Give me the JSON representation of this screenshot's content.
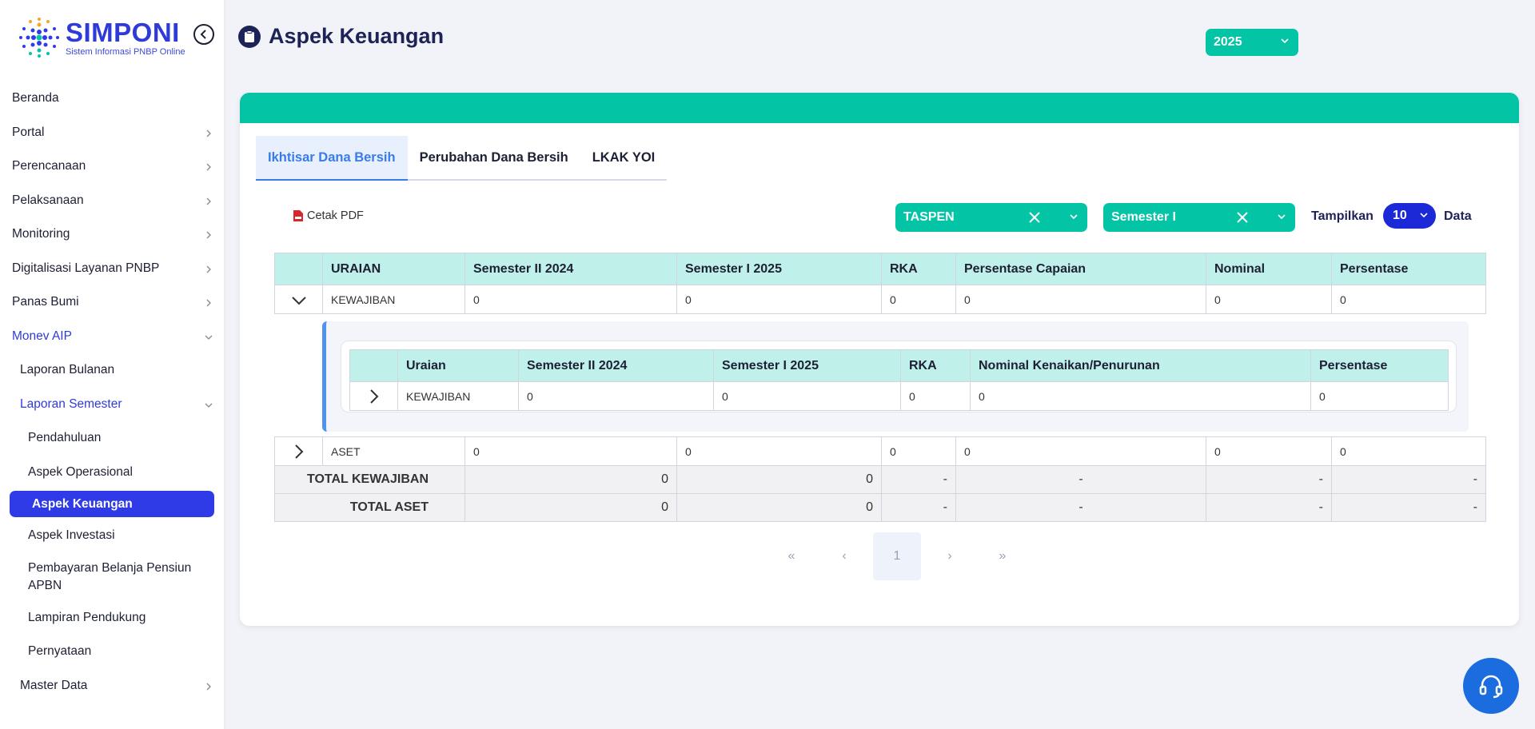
{
  "app": {
    "logo_title": "SIMPONI",
    "logo_subtitle": "Sistem Informasi PNBP Online"
  },
  "sidebar": {
    "items": [
      {
        "label": "Beranda"
      },
      {
        "label": "Portal"
      },
      {
        "label": "Perencanaan"
      },
      {
        "label": "Pelaksanaan"
      },
      {
        "label": "Monitoring"
      },
      {
        "label": "Digitalisasi Layanan PNBP"
      },
      {
        "label": "Panas Bumi"
      },
      {
        "label": "Monev AIP"
      },
      {
        "label": "Laporan Bulanan"
      },
      {
        "label": "Laporan Semester"
      },
      {
        "label": "Pendahuluan"
      },
      {
        "label": "Aspek Operasional"
      },
      {
        "label": "Aspek Keuangan"
      },
      {
        "label": "Aspek Investasi"
      },
      {
        "label": "Pembayaran Belanja Pensiun APBN"
      },
      {
        "label": "Lampiran Pendukung"
      },
      {
        "label": "Pernyataan"
      },
      {
        "label": "Master Data"
      }
    ]
  },
  "header": {
    "title": "Aspek Keuangan",
    "year": "2025"
  },
  "tabs": [
    {
      "label": "Ikhtisar Dana Bersih"
    },
    {
      "label": "Perubahan Dana Bersih"
    },
    {
      "label": "LKAK YOI"
    }
  ],
  "toolbar": {
    "pdf_label": "Cetak PDF",
    "filter_entity": "TASPEN",
    "filter_period": "Semester I",
    "show_label": "Tampilkan",
    "show_value": "10",
    "data_label": "Data"
  },
  "main_table": {
    "headers": [
      "URAIAN",
      "Semester II 2024",
      "Semester I 2025",
      "RKA",
      "Persentase Capaian",
      "Nominal",
      "Persentase"
    ],
    "rows": [
      [
        "KEWAJIBAN",
        "0",
        "0",
        "0",
        "0",
        "0",
        "0"
      ],
      [
        "ASET",
        "0",
        "0",
        "0",
        "0",
        "0",
        "0"
      ]
    ],
    "totals": [
      [
        "TOTAL KEWAJIBAN",
        "0",
        "0",
        "-",
        "-",
        "-",
        "-"
      ],
      [
        "TOTAL ASET",
        "0",
        "0",
        "-",
        "-",
        "-",
        "-"
      ]
    ]
  },
  "sub_table": {
    "headers": [
      "Uraian",
      "Semester II 2024",
      "Semester I 2025",
      "RKA",
      "Nominal Kenaikan/Penurunan",
      "Persentase"
    ],
    "rows": [
      [
        "KEWAJIBAN",
        "0",
        "0",
        "0",
        "0",
        "0"
      ]
    ]
  },
  "pagination": {
    "first": "«",
    "prev": "‹",
    "current": "1",
    "next": "›",
    "last": "»"
  },
  "colors": {
    "teal": "#04c4a6",
    "primary": "#2f3be6",
    "tab_active": "#3a7bea",
    "header_cell": "#bff0ea"
  }
}
